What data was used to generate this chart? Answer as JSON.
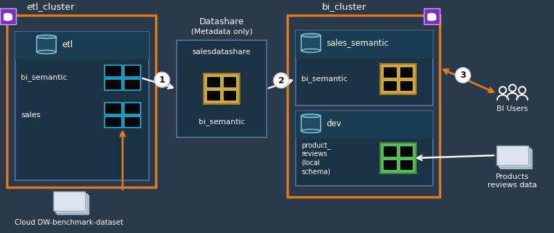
{
  "bg_color": "#2b3a4a",
  "text_color": "#ffffff",
  "orange_color": "#e07b20",
  "teal_medium": "#2196b8",
  "purple_color": "#7b2fbe",
  "gold_color": "#c8a84b",
  "green_color": "#5cb85c",
  "inner_bg": "#1b3344",
  "header_bg": "#1a3d52",
  "etl_cluster_label": "etl_cluster",
  "bi_cluster_label": "bi_cluster",
  "datashare_label": "Datashare",
  "meta_only_label": "(Metadata only)",
  "etl_db_label": "etl",
  "bi_semantic_label1": "bi_semantic",
  "sales_label": "sales",
  "salesdatashare_label": "salesdatashare",
  "bi_semantic_label2": "bi_semantic",
  "sales_semantic_label": "sales_semantic",
  "bi_semantic_label3": "bi_semantic",
  "dev_label": "dev",
  "product_reviews_label": "product_\nreviews\n(local\nschema)",
  "bi_users_label": "BI Users",
  "products_reviews_label": "Products\nreviews data",
  "cloud_dw_label": "Cloud DW-benchmark-dataset"
}
